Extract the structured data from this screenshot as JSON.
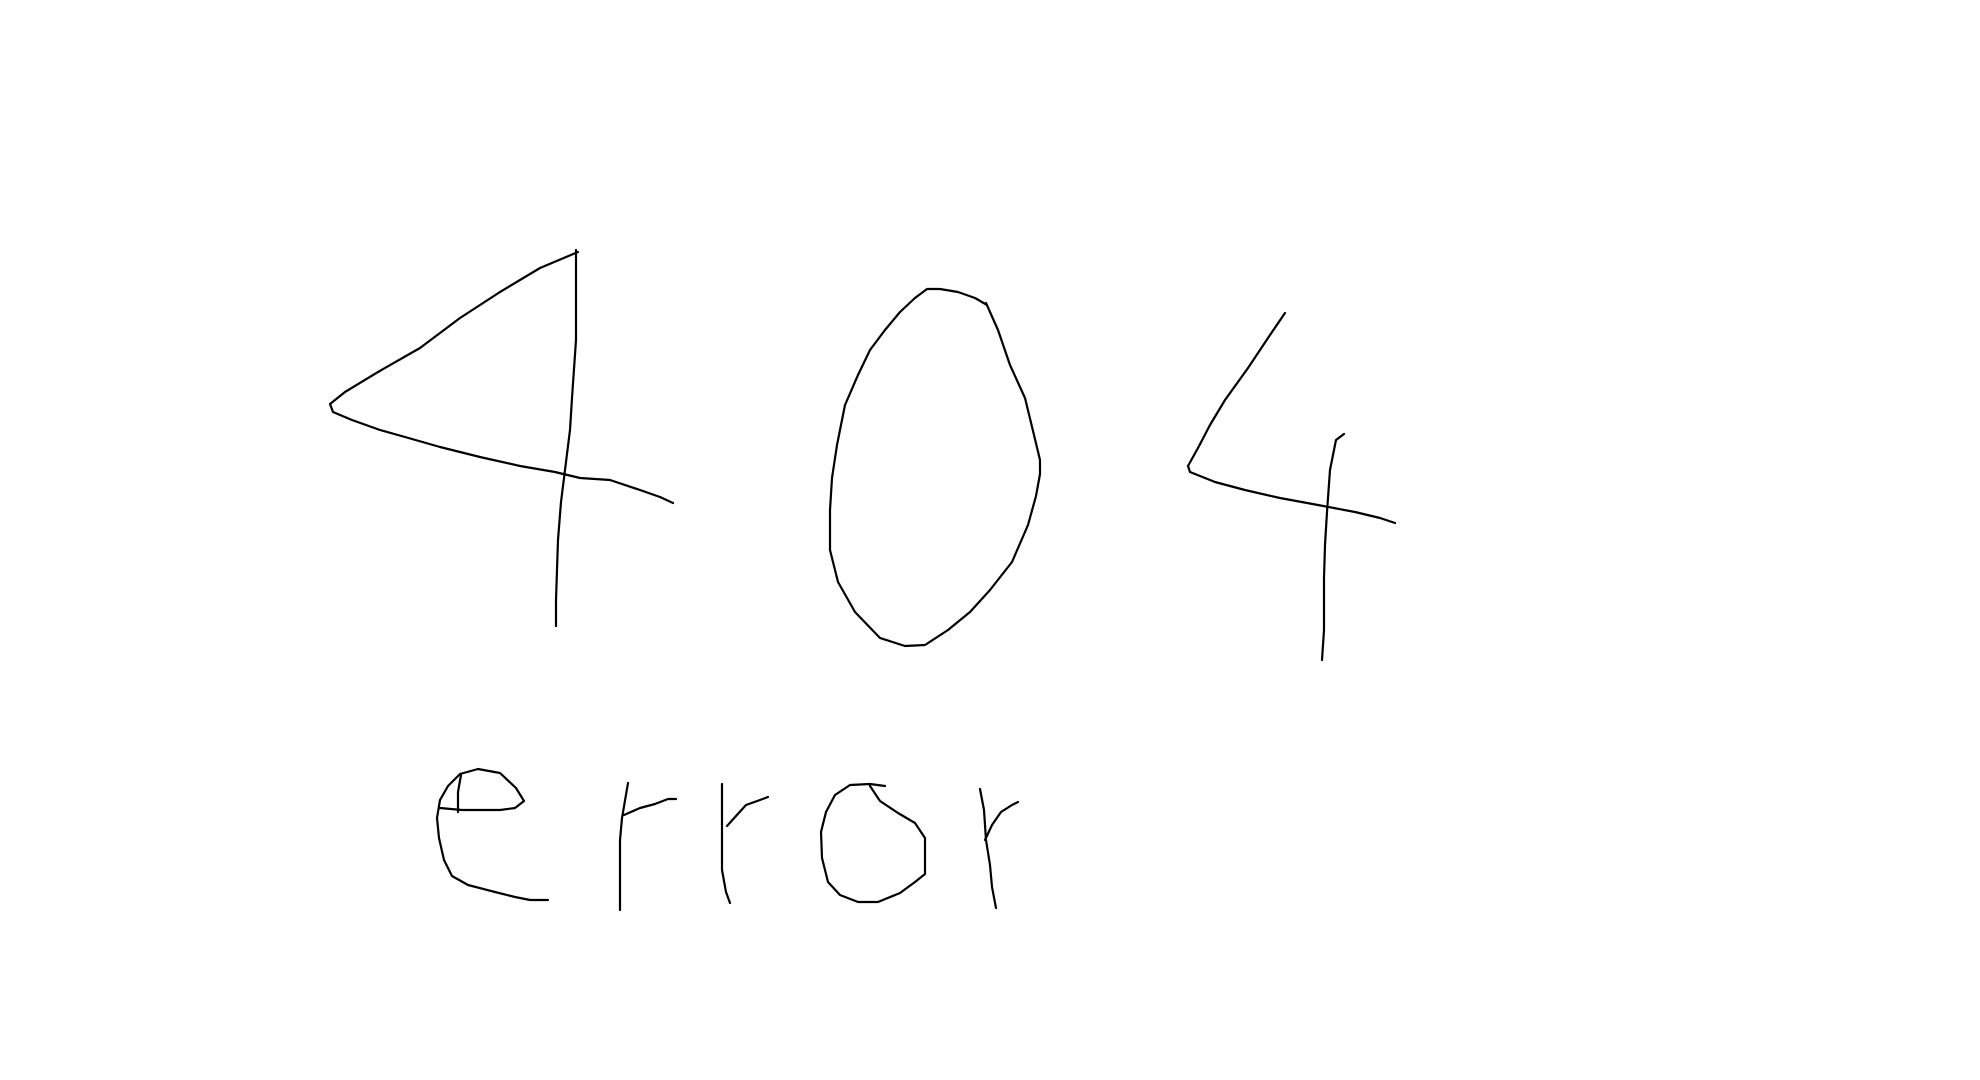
{
  "drawing": {
    "code": "404",
    "message": "error",
    "stroke_color": "#000000",
    "background_color": "#ffffff"
  }
}
